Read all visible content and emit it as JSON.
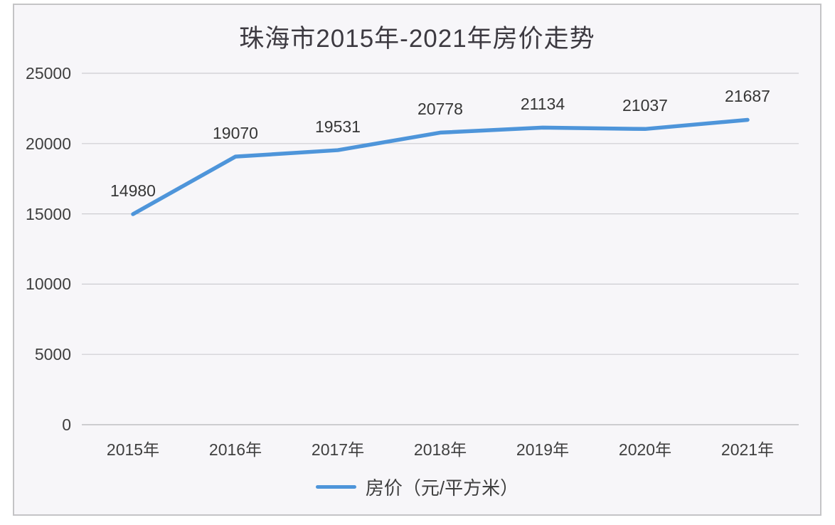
{
  "chart_data": {
    "type": "line",
    "title": "珠海市2015年-2021年房价走势",
    "categories": [
      "2015年",
      "2016年",
      "2017年",
      "2018年",
      "2019年",
      "2020年",
      "2021年"
    ],
    "series": [
      {
        "name": "房价（元/平方米）",
        "values": [
          14980,
          19070,
          19531,
          20778,
          21134,
          21037,
          21687
        ]
      }
    ],
    "y_ticks": [
      0,
      5000,
      10000,
      15000,
      20000,
      25000
    ],
    "ylim": [
      0,
      25000
    ],
    "xlabel": "",
    "ylabel": "",
    "grid": "horizontal",
    "data_labels_shown": true,
    "legend": {
      "label": "房价（元/平方米）",
      "position": "bottom"
    },
    "colors": {
      "line": "#4e95da",
      "title_text": "#3d3a41",
      "axis_text": "#3f3f3f",
      "data_label_text": "#363636",
      "gridline": "#cdcdd1",
      "axis_line": "#bfbfc3",
      "frame_border": "#c4c4c6",
      "plot_background": "#f7f6f9",
      "page_background": "#ffffff"
    }
  }
}
